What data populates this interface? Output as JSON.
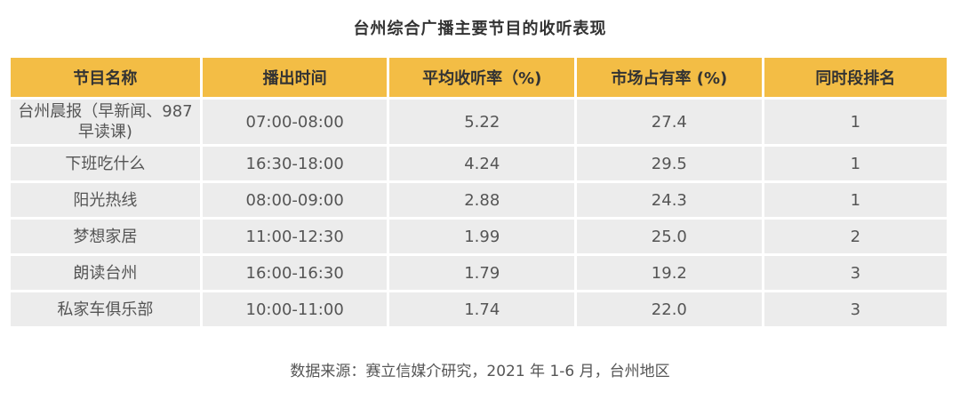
{
  "chart_data": {
    "type": "table",
    "title": "台州综合广播主要节目的收听表现",
    "columns": [
      "节目名称",
      "播出时间",
      "平均收听率（%)",
      "市场占有率 (%)",
      "同时段排名"
    ],
    "rows": [
      [
        "台州晨报（早新闻、987 早读课)",
        "07:00-08:00",
        "5.22",
        "27.4",
        "1"
      ],
      [
        "下班吃什么",
        "16:30-18:00",
        "4.24",
        "29.5",
        "1"
      ],
      [
        "阳光热线",
        "08:00-09:00",
        "2.88",
        "24.3",
        "1"
      ],
      [
        "梦想家居",
        "11:00-12:30",
        "1.99",
        "25.0",
        "2"
      ],
      [
        "朗读台州",
        "16:00-16:30",
        "1.79",
        "19.2",
        "3"
      ],
      [
        "私家车俱乐部",
        "10:00-11:00",
        "1.74",
        "22.0",
        "3"
      ]
    ],
    "source": "数据来源：赛立信媒介研究，2021 年 1-6 月，台州地区"
  },
  "colors": {
    "header_bg": "#f3bd45",
    "row_bg": "#ececec"
  }
}
